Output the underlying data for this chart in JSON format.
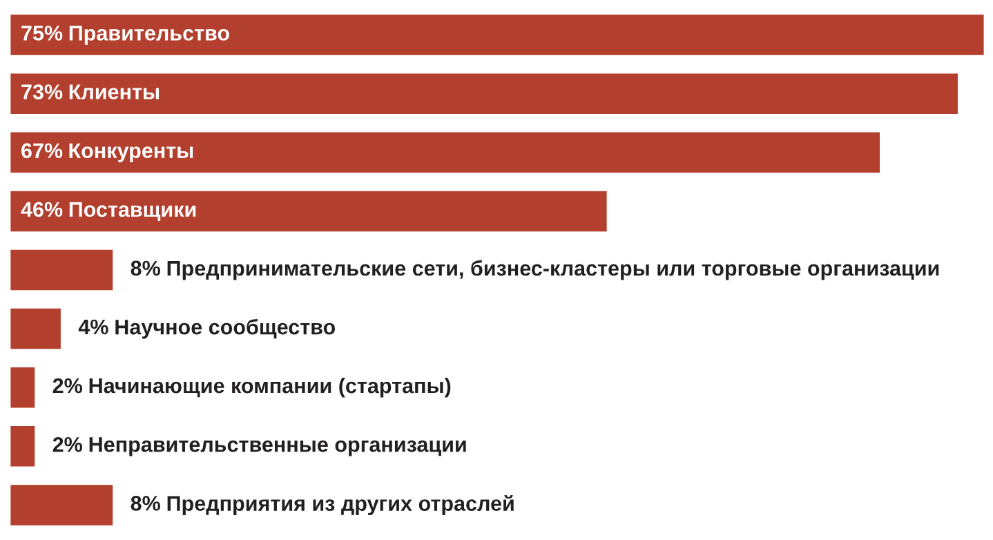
{
  "chart_data": {
    "type": "bar",
    "orientation": "horizontal",
    "categories": [
      "Правительство",
      "Клиенты",
      "Конкуренты",
      "Поставщики",
      "Предпринимательские сети, бизнес-кластеры или торговые организации",
      "Научное сообщество",
      "Начинающие компании (стартапы)",
      "Неправительственные организации",
      "Предприятия из других отраслей"
    ],
    "values": [
      75,
      73,
      67,
      46,
      8,
      4,
      2,
      2,
      8
    ],
    "value_labels": [
      "75%",
      "73%",
      "67%",
      "46%",
      "8%",
      "4%",
      "2%",
      "2%",
      "8%"
    ],
    "color": "#b3402e"
  }
}
